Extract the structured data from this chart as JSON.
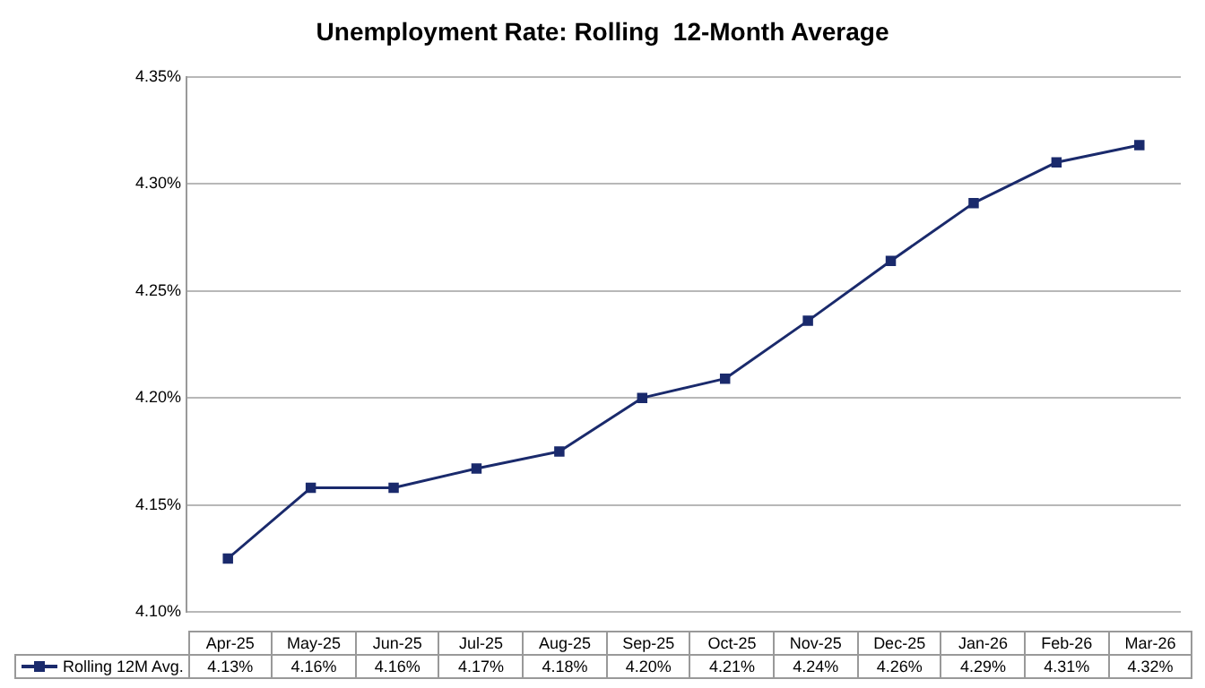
{
  "chart_data": {
    "type": "line",
    "title": "Unemployment Rate: Rolling  12-Month Average",
    "categories": [
      "Apr-25",
      "May-25",
      "Jun-25",
      "Jul-25",
      "Aug-25",
      "Sep-25",
      "Oct-25",
      "Nov-25",
      "Dec-25",
      "Jan-26",
      "Feb-26",
      "Mar-26"
    ],
    "series": [
      {
        "name": "Rolling 12M Avg.",
        "color": "#1a2a6c",
        "values": [
          4.125,
          4.158,
          4.158,
          4.167,
          4.175,
          4.2,
          4.209,
          4.236,
          4.264,
          4.291,
          4.31,
          4.318
        ],
        "value_labels": [
          "4.13%",
          "4.16%",
          "4.16%",
          "4.17%",
          "4.18%",
          "4.20%",
          "4.21%",
          "4.24%",
          "4.26%",
          "4.29%",
          "4.31%",
          "4.32%"
        ]
      }
    ],
    "ylim": [
      4.1,
      4.35
    ],
    "yticks": [
      {
        "value": 4.1,
        "label": "4.10%"
      },
      {
        "value": 4.15,
        "label": "4.15%"
      },
      {
        "value": 4.2,
        "label": "4.20%"
      },
      {
        "value": 4.25,
        "label": "4.25%"
      },
      {
        "value": 4.3,
        "label": "4.30%"
      },
      {
        "value": 4.35,
        "label": "4.35%"
      }
    ],
    "grid": "y",
    "legend": "bottom",
    "marker": "square",
    "line_style": "solid"
  }
}
